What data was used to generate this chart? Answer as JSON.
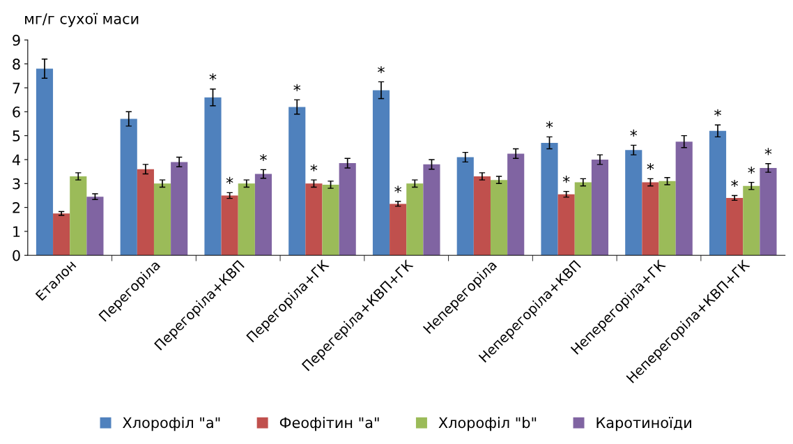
{
  "chart_data": {
    "type": "bar",
    "ylabel": "мг/г сухої маси",
    "categories": [
      "Еталон",
      "Перегоріла",
      "Перегоріла+КВП",
      "Перегоріла+ГК",
      "Перегеріла+КВП+ГК",
      "Неперегоріла",
      "Неперегоріла+КВП",
      "Неперегоріла+ГК",
      "Неперегоріла+КВП+ГК"
    ],
    "series": [
      {
        "name": "Хлорофіл \"а\"",
        "color": "#4f81bd",
        "values": [
          7.8,
          5.7,
          6.6,
          6.2,
          6.9,
          4.1,
          4.7,
          4.4,
          5.2
        ],
        "errors": [
          0.4,
          0.3,
          0.35,
          0.3,
          0.35,
          0.2,
          0.25,
          0.2,
          0.25
        ],
        "value_labels": [
          null,
          null,
          "*",
          "*",
          "*",
          null,
          "*",
          "*",
          "*"
        ]
      },
      {
        "name": "Феофітин \"а\"",
        "color": "#c0504d",
        "values": [
          1.75,
          3.6,
          2.5,
          3.0,
          2.15,
          3.3,
          2.55,
          3.05,
          2.4
        ],
        "errors": [
          0.08,
          0.2,
          0.12,
          0.15,
          0.1,
          0.15,
          0.12,
          0.15,
          0.1
        ],
        "value_labels": [
          null,
          null,
          "*",
          "*",
          "*",
          null,
          "*",
          "*",
          "*"
        ]
      },
      {
        "name": "Хлорофіл \"b\"",
        "color": "#9bbb59",
        "values": [
          3.3,
          3.0,
          3.0,
          2.95,
          3.0,
          3.15,
          3.05,
          3.1,
          2.9
        ],
        "errors": [
          0.15,
          0.15,
          0.15,
          0.15,
          0.15,
          0.15,
          0.15,
          0.15,
          0.15
        ],
        "value_labels": [
          null,
          null,
          null,
          null,
          null,
          null,
          null,
          null,
          "*"
        ]
      },
      {
        "name": "Каротиноїди",
        "color": "#8064a2",
        "values": [
          2.45,
          3.9,
          3.4,
          3.85,
          3.8,
          4.25,
          4.0,
          4.75,
          3.65
        ],
        "errors": [
          0.12,
          0.2,
          0.18,
          0.2,
          0.2,
          0.2,
          0.2,
          0.25,
          0.18
        ],
        "value_labels": [
          null,
          null,
          "*",
          null,
          null,
          null,
          null,
          null,
          "*"
        ]
      }
    ],
    "ylim": [
      0,
      9
    ],
    "yticks": [
      0,
      1,
      2,
      3,
      4,
      5,
      6,
      7,
      8,
      9
    ],
    "grid": false,
    "legend": "bottom"
  }
}
